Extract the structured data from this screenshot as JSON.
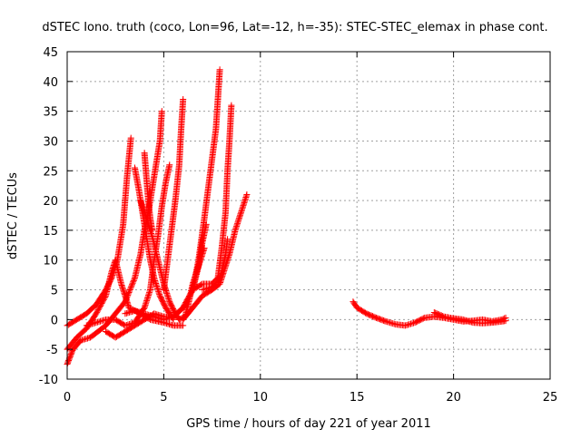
{
  "chart_data": {
    "type": "scatter",
    "title": "dSTEC Iono. truth (coco, Lon=96, Lat=-12, h=-35): STEC-STEC_elemax in phase cont.",
    "xlabel": "GPS time / hours of day 221 of year 2011",
    "ylabel": "dSTEC  / TECUs",
    "xlim": [
      0,
      25
    ],
    "ylim": [
      -10,
      45
    ],
    "xticks": [
      0,
      5,
      10,
      15,
      20,
      25
    ],
    "yticks": [
      -10,
      -5,
      0,
      5,
      10,
      15,
      20,
      25,
      30,
      35,
      40,
      45
    ],
    "grid": true,
    "marker": "plus",
    "color": "#ff0000",
    "series": [
      {
        "points": [
          [
            0,
            -1
          ],
          [
            0.5,
            0
          ],
          [
            1,
            1
          ],
          [
            1.5,
            2.5
          ],
          [
            2,
            5
          ],
          [
            2.3,
            7
          ],
          [
            2.6,
            10
          ],
          [
            2.9,
            16
          ],
          [
            3.1,
            24
          ],
          [
            3.3,
            30.5
          ]
        ]
      },
      {
        "points": [
          [
            0,
            -5
          ],
          [
            0.5,
            -3
          ],
          [
            1,
            -1.5
          ],
          [
            1.5,
            1
          ],
          [
            2,
            4
          ],
          [
            2.3,
            8
          ],
          [
            2.5,
            10
          ],
          [
            2.8,
            6
          ],
          [
            3.2,
            2
          ],
          [
            3.8,
            1
          ],
          [
            4.3,
            0
          ],
          [
            5,
            -0.5
          ],
          [
            5.5,
            -1
          ],
          [
            6,
            -1
          ]
        ]
      },
      {
        "points": [
          [
            0,
            -7.5
          ],
          [
            0.3,
            -5
          ],
          [
            0.7,
            -3.5
          ],
          [
            1.2,
            -3
          ],
          [
            1.6,
            -2
          ],
          [
            2,
            -1
          ],
          [
            2.5,
            1
          ],
          [
            3,
            3
          ],
          [
            3.5,
            7
          ],
          [
            3.8,
            11
          ],
          [
            4,
            15
          ],
          [
            4.2,
            18
          ],
          [
            4.4,
            22
          ],
          [
            4.6,
            26
          ],
          [
            4.8,
            30
          ],
          [
            4.9,
            35
          ]
        ]
      },
      {
        "points": [
          [
            1,
            -1
          ],
          [
            1.5,
            -0.5
          ],
          [
            2,
            0
          ],
          [
            2.5,
            0
          ],
          [
            3,
            -1
          ],
          [
            3.5,
            -0.5
          ],
          [
            4,
            2
          ],
          [
            4.3,
            5
          ],
          [
            4.5,
            10
          ],
          [
            4.7,
            14
          ],
          [
            4.9,
            19
          ],
          [
            5.1,
            23
          ],
          [
            5.3,
            26
          ]
        ]
      },
      {
        "points": [
          [
            2,
            -2
          ],
          [
            2.5,
            -3
          ],
          [
            3,
            -2
          ],
          [
            3.5,
            -1
          ],
          [
            4,
            0
          ],
          [
            4.5,
            1
          ],
          [
            5,
            0.5
          ],
          [
            5.5,
            0.5
          ],
          [
            6,
            2
          ],
          [
            6.5,
            5
          ],
          [
            6.8,
            10
          ],
          [
            7.1,
            17
          ],
          [
            7.3,
            22
          ],
          [
            7.5,
            27
          ],
          [
            7.7,
            32
          ],
          [
            7.8,
            37
          ],
          [
            7.9,
            42
          ]
        ]
      },
      {
        "points": [
          [
            3.5,
            25.5
          ],
          [
            3.7,
            22
          ],
          [
            3.9,
            18
          ],
          [
            4.1,
            14
          ],
          [
            4.3,
            10
          ],
          [
            4.5,
            7
          ],
          [
            4.8,
            4
          ],
          [
            5.1,
            2
          ],
          [
            5.3,
            1
          ],
          [
            5.5,
            0
          ]
        ]
      },
      {
        "points": [
          [
            3.8,
            20
          ],
          [
            4.1,
            17
          ],
          [
            4.4,
            14
          ],
          [
            4.7,
            10
          ],
          [
            5,
            6
          ],
          [
            5.3,
            3
          ],
          [
            5.6,
            1
          ],
          [
            5.8,
            0
          ],
          [
            6.1,
            0.5
          ],
          [
            6.3,
            3
          ],
          [
            6.5,
            6
          ],
          [
            6.7,
            8
          ],
          [
            6.9,
            10
          ],
          [
            7.1,
            12
          ]
        ]
      },
      {
        "points": [
          [
            4,
            28
          ],
          [
            4.1,
            24
          ],
          [
            4.2,
            20
          ],
          [
            4.3,
            17
          ],
          [
            4.4,
            15
          ]
        ]
      },
      {
        "points": [
          [
            3,
            1
          ],
          [
            3.5,
            1.5
          ],
          [
            4,
            1
          ],
          [
            4.5,
            0.5
          ],
          [
            5,
            0
          ],
          [
            5.5,
            0.5
          ],
          [
            6,
            2
          ],
          [
            6.5,
            5
          ],
          [
            6.8,
            9
          ],
          [
            7,
            13
          ],
          [
            7.2,
            16
          ]
        ]
      },
      {
        "points": [
          [
            5,
            5
          ],
          [
            5.2,
            10
          ],
          [
            5.4,
            15
          ],
          [
            5.6,
            20
          ],
          [
            5.8,
            26
          ],
          [
            5.9,
            32
          ],
          [
            6,
            37
          ]
        ]
      },
      {
        "points": [
          [
            6.5,
            5
          ],
          [
            7,
            6
          ],
          [
            7.5,
            6
          ],
          [
            7.8,
            7
          ],
          [
            8,
            12
          ],
          [
            8.2,
            18
          ],
          [
            8.3,
            25
          ],
          [
            8.4,
            30
          ],
          [
            8.5,
            36
          ]
        ]
      },
      {
        "points": [
          [
            7,
            5
          ],
          [
            7.5,
            5.5
          ],
          [
            7.8,
            6
          ],
          [
            8,
            8
          ],
          [
            8.2,
            11
          ],
          [
            8.3,
            13.5
          ]
        ]
      },
      {
        "points": [
          [
            6,
            0
          ],
          [
            6.5,
            2
          ],
          [
            7,
            4
          ],
          [
            7.5,
            5
          ],
          [
            7.9,
            6
          ],
          [
            8.1,
            8
          ],
          [
            8.4,
            11
          ],
          [
            8.7,
            15
          ],
          [
            9,
            18
          ],
          [
            9.3,
            21
          ]
        ]
      },
      {
        "points": [
          [
            14.8,
            3
          ],
          [
            15,
            2
          ],
          [
            15.5,
            1
          ],
          [
            16,
            0.3
          ],
          [
            16.5,
            -0.3
          ],
          [
            17,
            -0.8
          ],
          [
            17.5,
            -1
          ],
          [
            18,
            -0.5
          ],
          [
            18.5,
            0.3
          ],
          [
            19,
            0.5
          ],
          [
            19.5,
            0.3
          ],
          [
            20,
            0
          ],
          [
            20.5,
            -0.3
          ],
          [
            21,
            -0.2
          ],
          [
            21.5,
            0
          ],
          [
            22,
            -0.3
          ],
          [
            22.5,
            0
          ],
          [
            22.7,
            0.3
          ]
        ]
      },
      {
        "points": [
          [
            19,
            1.2
          ],
          [
            19.5,
            0.5
          ],
          [
            20,
            0.2
          ],
          [
            20.5,
            0
          ],
          [
            21,
            -0.5
          ],
          [
            21.5,
            -0.6
          ],
          [
            22,
            -0.5
          ],
          [
            22.5,
            -0.3
          ],
          [
            22.7,
            -0.2
          ]
        ]
      }
    ]
  }
}
